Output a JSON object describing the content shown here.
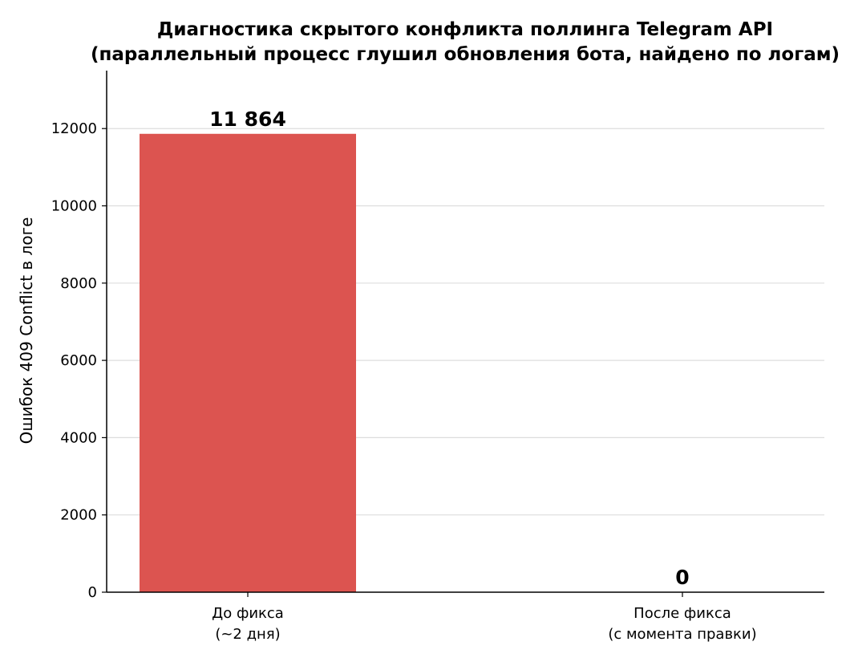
{
  "chart_data": {
    "type": "bar",
    "title_lines": [
      "Диагностика скрытого конфликта поллинга Telegram API",
      "(параллельный процесс глушил обновления бота, найдено по логам)"
    ],
    "ylabel": "Ошибок 409 Conflict в логе",
    "categories": [
      [
        "До фикса",
        "(~2 дня)"
      ],
      [
        "После фикса",
        "(с момента правки)"
      ]
    ],
    "values": [
      11864,
      0
    ],
    "value_labels": [
      "11 864",
      "0"
    ],
    "ylim": [
      0,
      13500
    ],
    "yticks": [
      0,
      2000,
      4000,
      6000,
      8000,
      10000,
      12000
    ],
    "grid": true,
    "colors": [
      "#dc5450",
      "#3aa65a"
    ]
  }
}
